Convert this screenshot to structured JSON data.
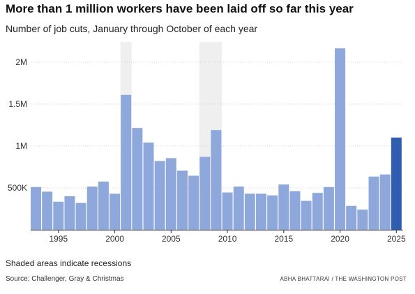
{
  "header": {
    "title": "More than 1 million workers have been laid off so far this year",
    "subtitle": "Number of job cuts, January through October of each year"
  },
  "footer": {
    "note": "Shaded areas indicate recessions",
    "source": "Source: Challenger, Gray & Christmas",
    "credit": "ABHA BHATTARAI / THE WASHINGTON POST"
  },
  "colors": {
    "bar": "#8fa8db",
    "highlight": "#2f5db0",
    "recession": "#efefef",
    "grid": "#d6d6d6",
    "axis": "#333333"
  },
  "chart_data": {
    "type": "bar",
    "title": "More than 1 million workers have been laid off so far this year",
    "subtitle": "Number of job cuts, January through October of each year",
    "xlabel": "",
    "ylabel": "",
    "ylim": [
      0,
      2400000
    ],
    "grid": true,
    "y_ticks": [
      500000,
      1000000,
      1500000,
      2000000
    ],
    "y_tick_labels": [
      "500K",
      "1M",
      "1.5M",
      "2M"
    ],
    "x_ticks": [
      1995,
      2000,
      2005,
      2010,
      2015,
      2020,
      2025
    ],
    "x_tick_labels": [
      "1995",
      "2000",
      "2005",
      "2010",
      "2015",
      "2020",
      "2025"
    ],
    "highlight_category": 2025,
    "recessions": [
      [
        2001,
        2001
      ],
      [
        2008,
        2009
      ]
    ],
    "categories": [
      1993,
      1994,
      1995,
      1996,
      1997,
      1998,
      1999,
      2000,
      2001,
      2002,
      2003,
      2004,
      2005,
      2006,
      2007,
      2008,
      2009,
      2010,
      2011,
      2012,
      2013,
      2014,
      2015,
      2016,
      2017,
      2018,
      2019,
      2020,
      2021,
      2022,
      2023,
      2024,
      2025
    ],
    "values": [
      510000,
      455000,
      335000,
      400000,
      320000,
      515000,
      575000,
      430000,
      1610000,
      1215000,
      1040000,
      820000,
      855000,
      705000,
      645000,
      870000,
      1190000,
      445000,
      515000,
      430000,
      430000,
      410000,
      540000,
      460000,
      345000,
      440000,
      510000,
      2165000,
      285000,
      240000,
      635000,
      660000,
      1100000
    ]
  }
}
